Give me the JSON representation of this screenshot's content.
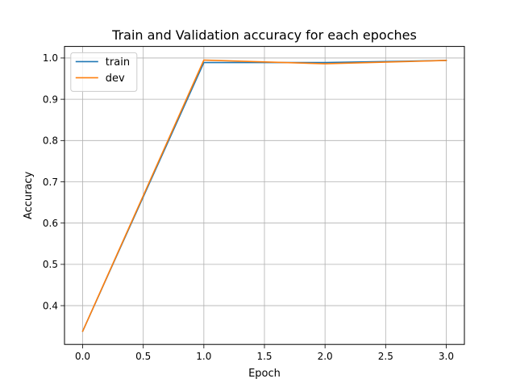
{
  "chart_data": {
    "type": "line",
    "title": "Train and Validation accuracy for each epoches",
    "xlabel": "Epoch",
    "ylabel": "Accuracy",
    "x": [
      0,
      1,
      2,
      3
    ],
    "series": [
      {
        "name": "train",
        "color": "#1f77b4",
        "values": [
          0.338,
          0.989,
          0.989,
          0.994
        ]
      },
      {
        "name": "dev",
        "color": "#ff7f0e",
        "values": [
          0.338,
          0.995,
          0.986,
          0.994
        ]
      }
    ],
    "xlim": [
      -0.15,
      3.15
    ],
    "ylim": [
      0.306,
      1.028
    ],
    "xticks": [
      0.0,
      0.5,
      1.0,
      1.5,
      2.0,
      2.5,
      3.0
    ],
    "xtick_labels": [
      "0.0",
      "0.5",
      "1.0",
      "1.5",
      "2.0",
      "2.5",
      "3.0"
    ],
    "yticks": [
      0.4,
      0.5,
      0.6,
      0.7,
      0.8,
      0.9,
      1.0
    ],
    "ytick_labels": [
      "0.4",
      "0.5",
      "0.6",
      "0.7",
      "0.8",
      "0.9",
      "1.0"
    ],
    "grid": true,
    "legend_position": "top-left"
  }
}
